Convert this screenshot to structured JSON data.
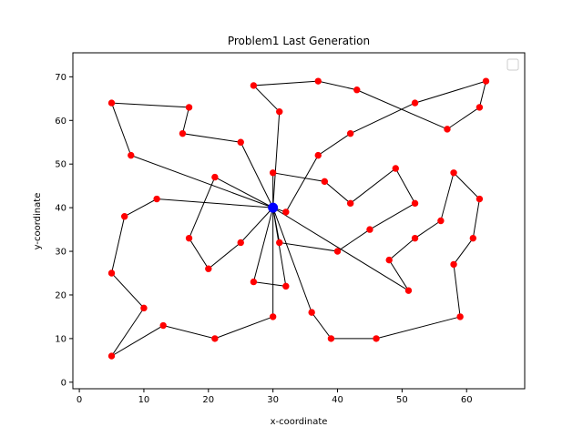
{
  "chart_data": {
    "type": "scatter",
    "title": "Problem1 Last Generation",
    "xlabel": "x-coordinate",
    "ylabel": "y-coordinate",
    "xlim": [
      -1,
      69
    ],
    "ylim": [
      -1.5,
      75.5
    ],
    "xticks": [
      0,
      10,
      20,
      30,
      40,
      50,
      60
    ],
    "yticks": [
      0,
      10,
      20,
      30,
      40,
      50,
      60,
      70
    ],
    "grid": false,
    "legend": "top-right (empty)",
    "depot": {
      "x": 30,
      "y": 40,
      "color": "#0000ff"
    },
    "point_color": "#ff0000",
    "line_color": "#000000",
    "routes": [
      [
        [
          30,
          40
        ],
        [
          21,
          47
        ],
        [
          17,
          33
        ],
        [
          20,
          26
        ],
        [
          25,
          32
        ],
        [
          30,
          40
        ]
      ],
      [
        [
          30,
          40
        ],
        [
          25,
          55
        ],
        [
          16,
          57
        ],
        [
          17,
          63
        ],
        [
          5,
          64
        ],
        [
          8,
          52
        ],
        [
          30,
          40
        ]
      ],
      [
        [
          30,
          40
        ],
        [
          12,
          42
        ],
        [
          7,
          38
        ],
        [
          5,
          25
        ],
        [
          10,
          17
        ],
        [
          5,
          6
        ],
        [
          13,
          13
        ],
        [
          21,
          10
        ],
        [
          30,
          15
        ],
        [
          30,
          40
        ]
      ],
      [
        [
          30,
          40
        ],
        [
          27,
          23
        ],
        [
          32,
          22
        ],
        [
          30,
          40
        ]
      ],
      [
        [
          30,
          40
        ],
        [
          36,
          16
        ],
        [
          39,
          10
        ],
        [
          46,
          10
        ],
        [
          59,
          15
        ],
        [
          58,
          27
        ],
        [
          61,
          33
        ],
        [
          62,
          42
        ],
        [
          58,
          48
        ],
        [
          56,
          37
        ],
        [
          52,
          33
        ],
        [
          48,
          28
        ],
        [
          51,
          21
        ],
        [
          30,
          40
        ]
      ],
      [
        [
          30,
          40
        ],
        [
          31,
          32
        ],
        [
          40,
          30
        ],
        [
          45,
          35
        ],
        [
          52,
          41
        ],
        [
          49,
          49
        ],
        [
          42,
          41
        ],
        [
          38,
          46
        ],
        [
          30,
          48
        ],
        [
          30,
          40
        ]
      ],
      [
        [
          30,
          40
        ],
        [
          32,
          39
        ],
        [
          37,
          52
        ],
        [
          42,
          57
        ],
        [
          52,
          64
        ],
        [
          63,
          69
        ],
        [
          62,
          63
        ],
        [
          57,
          58
        ],
        [
          43,
          67
        ],
        [
          37,
          69
        ],
        [
          27,
          68
        ],
        [
          31,
          62
        ],
        [
          30,
          40
        ]
      ]
    ]
  }
}
